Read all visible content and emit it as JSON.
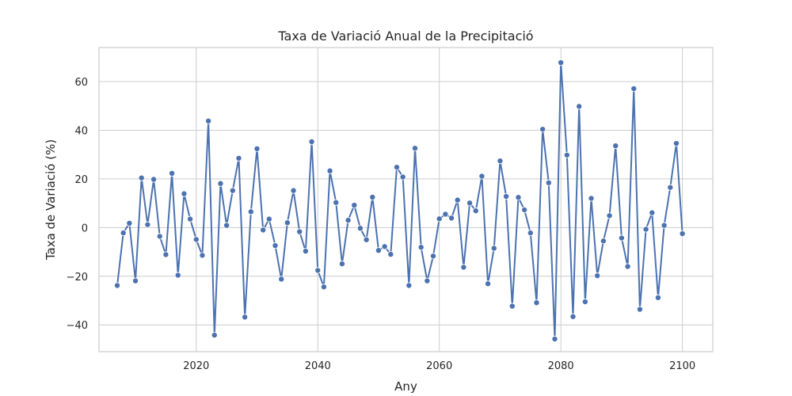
{
  "chart_data": {
    "type": "line",
    "title": "Taxa de Variació Anual de la Precipitació",
    "xlabel": "Any",
    "ylabel": "Taxa de Variació (%)",
    "xlim": [
      2004,
      2105
    ],
    "ylim": [
      -51,
      74
    ],
    "xticks": [
      2020,
      2040,
      2060,
      2080,
      2100
    ],
    "yticks": [
      -40,
      -20,
      0,
      20,
      40,
      60
    ],
    "grid": true,
    "color": "#4c72b0",
    "series": [
      {
        "x": [
          2007,
          2008,
          2009,
          2010,
          2011,
          2012,
          2013,
          2014,
          2015,
          2016,
          2017,
          2018,
          2019,
          2020,
          2021,
          2022,
          2023,
          2024,
          2025,
          2026,
          2027,
          2028,
          2029,
          2030,
          2031,
          2032,
          2033,
          2034,
          2035,
          2036,
          2037,
          2038,
          2039,
          2040,
          2041,
          2042,
          2043,
          2044,
          2045,
          2046,
          2047,
          2048,
          2049,
          2050,
          2051,
          2052,
          2053,
          2054,
          2055,
          2056,
          2057,
          2058,
          2059,
          2060,
          2061,
          2062,
          2063,
          2064,
          2065,
          2066,
          2067,
          2068,
          2069,
          2070,
          2071,
          2072,
          2073,
          2074,
          2075,
          2076,
          2077,
          2078,
          2079,
          2080,
          2081,
          2082,
          2083,
          2084,
          2085,
          2086,
          2087,
          2088,
          2089,
          2090,
          2091,
          2092,
          2093,
          2094,
          2095,
          2096,
          2097,
          2098,
          2099,
          2100
        ],
        "y": [
          -23.8,
          -2.2,
          1.8,
          -21.9,
          20.4,
          1.2,
          19.8,
          -3.6,
          -11.1,
          22.3,
          -19.6,
          13.9,
          3.5,
          -4.9,
          -11.4,
          43.8,
          -44.2,
          18.1,
          0.9,
          15.2,
          28.5,
          -36.8,
          6.5,
          32.4,
          -1.0,
          3.5,
          -7.4,
          -21.2,
          2.0,
          15.2,
          -1.7,
          -9.7,
          35.3,
          -17.6,
          -24.4,
          23.3,
          10.3,
          -14.9,
          3.0,
          9.2,
          -0.3,
          -5.0,
          12.5,
          -9.4,
          -7.8,
          -11.0,
          24.8,
          20.8,
          -23.8,
          32.6,
          -8.1,
          -21.9,
          -11.7,
          3.6,
          5.5,
          3.9,
          11.3,
          -16.3,
          10.1,
          6.9,
          21.1,
          -23.1,
          -8.5,
          27.4,
          12.8,
          -32.3,
          12.4,
          7.3,
          -2.2,
          -30.9,
          40.4,
          18.4,
          -45.8,
          67.8,
          29.8,
          -36.6,
          49.8,
          -30.5,
          12.0,
          -19.8,
          -5.5,
          4.9,
          33.6,
          -4.3,
          -16.0,
          57.1,
          -33.6,
          -0.7,
          6.1,
          -28.8,
          0.9,
          16.5,
          34.6,
          -2.5
        ]
      }
    ]
  }
}
